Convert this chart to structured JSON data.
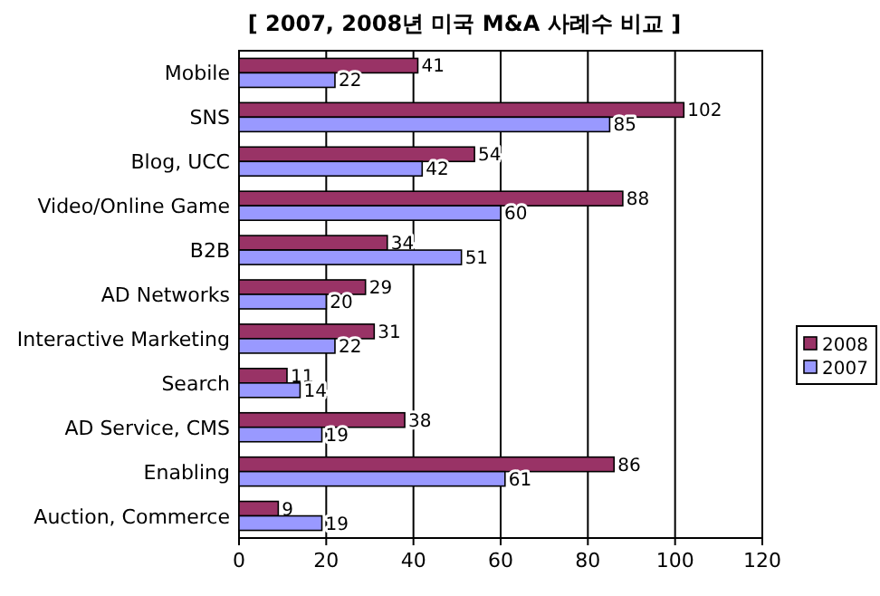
{
  "chart_data": {
    "type": "bar",
    "orientation": "horizontal",
    "title": "[ 2007, 2008년 미국 M&A 사례수 비교 ]",
    "categories": [
      "Mobile",
      "SNS",
      "Blog, UCC",
      "Video/Online Game",
      "B2B",
      "AD Networks",
      "Interactive Marketing",
      "Search",
      "AD Service, CMS",
      "Enabling",
      "Auction, Commerce"
    ],
    "series": [
      {
        "name": "2008",
        "color": "#993366",
        "values": [
          41,
          102,
          54,
          88,
          34,
          29,
          31,
          11,
          38,
          86,
          9
        ]
      },
      {
        "name": "2007",
        "color": "#9999ff",
        "values": [
          22,
          85,
          42,
          60,
          51,
          20,
          22,
          14,
          19,
          61,
          19
        ]
      }
    ],
    "xlim": [
      0,
      120
    ],
    "xticks": [
      0,
      20,
      40,
      60,
      80,
      100,
      120
    ],
    "grid": "x",
    "legend": "right",
    "data_labels": true
  }
}
